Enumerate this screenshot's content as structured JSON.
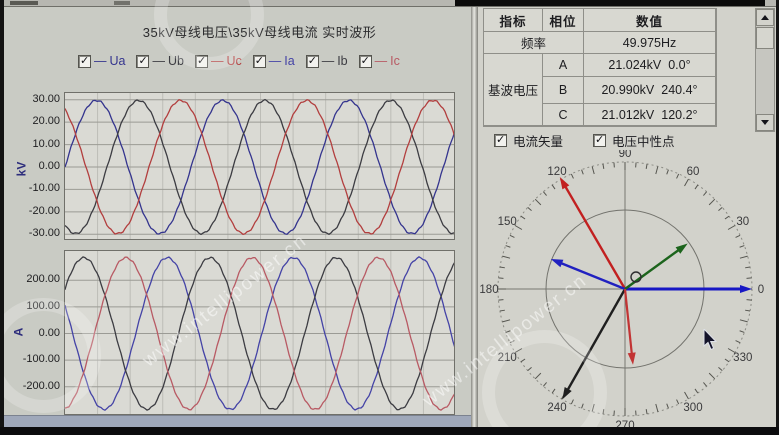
{
  "left_panel": {
    "title": "35kV母线电压\\35kV母线电流 实时波形",
    "legend": [
      {
        "label": "Ua",
        "color": "#34348e",
        "checked": true
      },
      {
        "label": "Ub",
        "color": "#3c3c42",
        "checked": true
      },
      {
        "label": "Uc",
        "color": "#b23e3e",
        "checked": true
      },
      {
        "label": "Ia",
        "color": "#4443a6",
        "checked": true
      },
      {
        "label": "Ib",
        "color": "#3c3c42",
        "checked": true
      },
      {
        "label": "Ic",
        "color": "#b85a64",
        "checked": true
      }
    ]
  },
  "chart_data": [
    {
      "type": "line",
      "id": "voltage_waveform",
      "title": "35kV母线电压 实时波形",
      "ylabel": "kV",
      "ytick_labels": [
        "30.00",
        "20.00",
        "10.00",
        "0.00",
        "-10.00",
        "-20.00",
        "-30.00"
      ],
      "yticks": [
        30,
        20,
        10,
        0,
        -10,
        -20,
        -30
      ],
      "ylim": [
        -33,
        33
      ],
      "cycles": 3.1,
      "grid": true,
      "series": [
        {
          "name": "Ua",
          "color": "#34348e",
          "amplitude": 29.7,
          "phase_deg": 0
        },
        {
          "name": "Ub",
          "color": "#3c3c42",
          "amplitude": 29.7,
          "phase_deg": 240
        },
        {
          "name": "Uc",
          "color": "#b23e3e",
          "amplitude": 29.7,
          "phase_deg": 120
        }
      ]
    },
    {
      "type": "line",
      "id": "current_waveform",
      "title": "35kV母线电流 实时波形",
      "ylabel": "A",
      "ytick_labels": [
        "200.00",
        "100.00",
        "0.00",
        "-100.00",
        "-200.00"
      ],
      "yticks": [
        200,
        100,
        0,
        -100,
        -200
      ],
      "ylim": [
        -310,
        310
      ],
      "cycles": 3.1,
      "grid": true,
      "series": [
        {
          "name": "Ia",
          "color": "#4443a6",
          "amplitude": 285,
          "phase_deg": 158
        },
        {
          "name": "Ib",
          "color": "#3c3c42",
          "amplitude": 285,
          "phase_deg": 36
        },
        {
          "name": "Ic",
          "color": "#b85a64",
          "amplitude": 285,
          "phase_deg": 276
        }
      ]
    },
    {
      "type": "polar",
      "id": "phasor_diagram",
      "angle_labels": [
        0,
        30,
        60,
        90,
        120,
        150,
        180,
        210,
        240,
        270,
        300,
        330
      ],
      "origin_label": "O",
      "voltage_vectors": [
        {
          "name": "Ua",
          "color": "#1717c4",
          "angle_deg": 0.0,
          "magnitude": "21.024kV",
          "r": 1.0,
          "width": 3
        },
        {
          "name": "Ub",
          "color": "#1f1f1f",
          "angle_deg": 240.4,
          "magnitude": "20.990kV",
          "r": 1.0,
          "width": 2.4
        },
        {
          "name": "Uc",
          "color": "#c22020",
          "angle_deg": 120.2,
          "magnitude": "21.012kV",
          "r": 1.02,
          "width": 2.4
        }
      ],
      "current_vectors": [
        {
          "name": "Ia",
          "color": "#2121c0",
          "angle_deg": 158,
          "r": 0.63,
          "width": 2.4
        },
        {
          "name": "Ib",
          "color": "#1c641c",
          "angle_deg": 36,
          "r": 0.61,
          "width": 2.4
        },
        {
          "name": "Ic",
          "color": "#c23434",
          "angle_deg": 276,
          "r": 0.6,
          "width": 2.2
        }
      ]
    }
  ],
  "table": {
    "headers": [
      "指标",
      "相位",
      "数值"
    ],
    "frequency": {
      "label": "频率",
      "value": "49.975Hz"
    },
    "fundamental": {
      "label": "基波电压",
      "rows": [
        {
          "phase": "A",
          "magnitude": "21.024kV",
          "angle": "0.0°"
        },
        {
          "phase": "B",
          "magnitude": "20.990kV",
          "angle": "240.4°"
        },
        {
          "phase": "C",
          "magnitude": "21.012kV",
          "angle": "120.2°"
        }
      ]
    }
  },
  "vector_controls": [
    {
      "label": "电流矢量",
      "checked": true
    },
    {
      "label": "电压中性点",
      "checked": true
    }
  ],
  "watermark": "www.intellipower.cn"
}
